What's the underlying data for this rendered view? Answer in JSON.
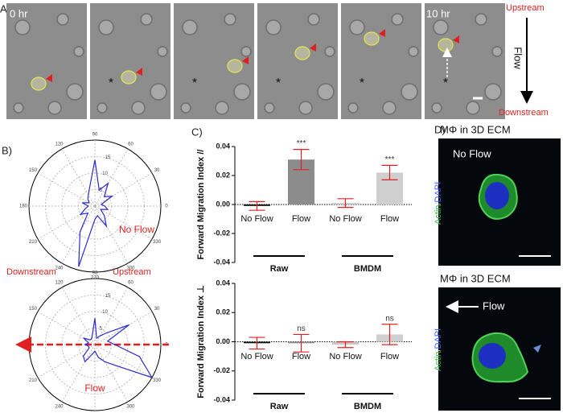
{
  "panel_labels": [
    "A)",
    "B)",
    "C)",
    "D)"
  ],
  "timelapse": {
    "start": "0 hr",
    "end": "10 hr",
    "origin_marker": "*",
    "upstream": "Upstream",
    "flow": "Flow",
    "downstream": "Downstream"
  },
  "chart_data": [
    {
      "type": "polar",
      "label": "No Flow",
      "color": "#2a2ad0",
      "theta": [
        0,
        15,
        30,
        45,
        60,
        75,
        90,
        105,
        120,
        135,
        150,
        165,
        180,
        195,
        210,
        225,
        240,
        255,
        270,
        285,
        300,
        315,
        330,
        345
      ],
      "r": [
        3,
        2,
        6,
        4,
        8,
        5,
        14,
        6,
        4,
        3,
        2,
        4,
        2,
        3,
        5,
        3,
        9,
        19,
        4,
        3,
        7,
        4,
        2,
        4
      ],
      "rlim": [
        0,
        20
      ],
      "rticks": [
        5,
        10,
        15
      ],
      "thetaticks": [
        0,
        30,
        60,
        90,
        120,
        150,
        180,
        210,
        240,
        270,
        300,
        330
      ]
    },
    {
      "type": "polar",
      "label": "Flow",
      "downstream": "Downstream",
      "upstream": "Upstream",
      "color": "#2a2ad0",
      "theta": [
        0,
        15,
        30,
        45,
        60,
        75,
        90,
        105,
        120,
        135,
        150,
        165,
        180,
        195,
        210,
        225,
        240,
        255,
        270,
        285,
        300,
        315,
        330,
        345
      ],
      "r": [
        6,
        4,
        12,
        5,
        3,
        2,
        8,
        3,
        2,
        2,
        4,
        2,
        3,
        2,
        2,
        5,
        6,
        3,
        2,
        4,
        6,
        9,
        20,
        14
      ],
      "rlim": [
        0,
        20
      ],
      "rticks": [
        5,
        10,
        15
      ],
      "thetaticks": [
        0,
        30,
        60,
        90,
        120,
        150,
        180,
        210,
        240,
        270,
        300,
        330
      ]
    },
    {
      "type": "bar",
      "ylabel": "Forward Migration Index //",
      "categories": [
        "No Flow",
        "Flow",
        "No Flow",
        "Flow"
      ],
      "groups": [
        "Raw",
        "BMDM"
      ],
      "values": [
        -0.001,
        0.031,
        0.001,
        0.022
      ],
      "errors": [
        0.003,
        0.007,
        0.003,
        0.005
      ],
      "colors": [
        "#111111",
        "#8c8c8c",
        "#c8c8c8",
        "#cfcfcf"
      ],
      "error_color": "#e02020",
      "annotations": [
        null,
        "***",
        null,
        "***"
      ],
      "ylim": [
        -0.04,
        0.04
      ],
      "yticks": [
        -0.04,
        -0.02,
        {
          "value": 0,
          "label": "0.00"
        },
        0.02,
        0.04
      ]
    },
    {
      "type": "bar",
      "ylabel": "Forward Migration Index ⊥",
      "categories": [
        "No Flow",
        "Flow",
        "No Flow",
        "Flow"
      ],
      "groups": [
        "Raw",
        "BMDM"
      ],
      "values": [
        -0.001,
        -0.001,
        -0.002,
        0.005
      ],
      "errors": [
        0.004,
        0.006,
        0.002,
        0.007
      ],
      "colors": [
        "#111111",
        "#8c8c8c",
        "#c8c8c8",
        "#cfcfcf"
      ],
      "error_color": "#e02020",
      "annotations": [
        null,
        "ns",
        null,
        "ns"
      ],
      "ylim": [
        -0.04,
        0.04
      ],
      "yticks": [
        -0.04,
        -0.02,
        {
          "value": 0,
          "label": "0.00"
        },
        0.02,
        0.04
      ]
    }
  ],
  "fluorescence": [
    {
      "title": "MΦ in 3D ECM",
      "condition": "No Flow",
      "stain": {
        "actin": "Actin",
        "separator": "/",
        "dapi": "DAPI"
      }
    },
    {
      "title": "MΦ in 3D ECM",
      "condition": "Flow",
      "stain": {
        "actin": "Actin",
        "separator": "/",
        "dapi": "DAPI"
      }
    }
  ]
}
